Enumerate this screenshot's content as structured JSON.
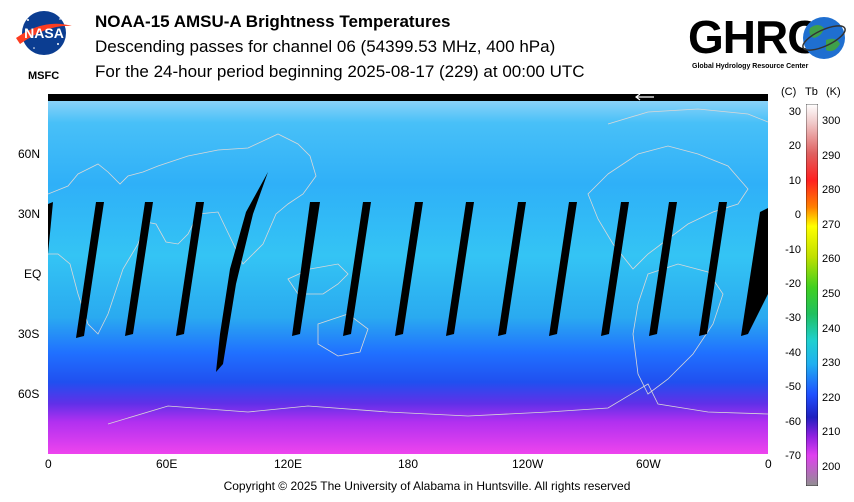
{
  "header": {
    "title": "NOAA-15 AMSU-A Brightness Temperatures",
    "subtitle": "Descending passes for channel 06 (54399.53 MHz, 400 hPa)",
    "period": "For the 24-hour period beginning 2025-08-17 (229) at 00:00 UTC"
  },
  "logos": {
    "nasa_text": "NASA",
    "nasa_sub": "MSFC",
    "ghrc_text": "GHRC",
    "ghrc_sub": "Global Hydrology Resource Center"
  },
  "map": {
    "lat_labels": [
      "60N",
      "30N",
      "EQ",
      "30S",
      "60S"
    ],
    "lon_labels": [
      "0",
      "60E",
      "120E",
      "180",
      "120W",
      "60W",
      "0"
    ]
  },
  "colorbar": {
    "celsius_unit": "(C)",
    "tb_label": "Tb",
    "kelvin_unit": "(K)",
    "celsius_ticks": [
      "30",
      "20",
      "10",
      "0",
      "-10",
      "-20",
      "-30",
      "-40",
      "-50",
      "-60",
      "-70"
    ],
    "kelvin_ticks": [
      "300",
      "290",
      "280",
      "270",
      "260",
      "250",
      "240",
      "230",
      "220",
      "210",
      "200"
    ]
  },
  "footer": {
    "copyright": "Copyright © 2025 The University of Alabama in Huntsville.  All rights reserved"
  },
  "colors": {
    "map_background": "#2aa6f0",
    "swath_gap": "#000000",
    "coastline": "#d8d8d8",
    "polar_south": "#e040f0"
  },
  "icons": {
    "nasa": "nasa-meatball-icon",
    "globe": "globe-icon",
    "arrow": "left-arrow-icon"
  }
}
